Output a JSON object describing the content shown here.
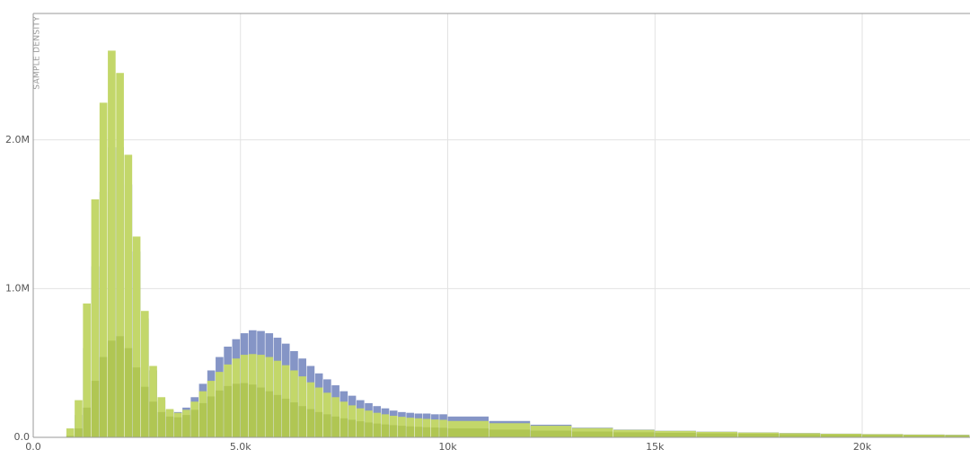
{
  "chart_data": {
    "type": "histogram",
    "y_label": "SAMPLE DENSITY",
    "bins": [
      0,
      200,
      400,
      600,
      800,
      1000,
      1200,
      1400,
      1600,
      1800,
      2000,
      2200,
      2400,
      2600,
      2800,
      3000,
      3200,
      3400,
      3600,
      3800,
      4000,
      4200,
      4400,
      4600,
      4800,
      5000,
      5200,
      5400,
      5600,
      5800,
      6000,
      6200,
      6400,
      6600,
      6800,
      7000,
      7200,
      7400,
      7600,
      7800,
      8000,
      8200,
      8400,
      8600,
      8800,
      9000,
      9200,
      9400,
      9600,
      9800,
      10000,
      11000,
      12000,
      13000,
      14000,
      15000,
      16000,
      17000,
      18000,
      19000,
      20000,
      21000,
      22000,
      22600
    ],
    "series": [
      {
        "color": "#8595c6",
        "opacity": 1,
        "values": [
          0,
          0,
          0,
          0,
          20000,
          150000,
          600000,
          1150000,
          1650000,
          1950000,
          1950000,
          1700000,
          1250000,
          800000,
          450000,
          250000,
          180000,
          170000,
          200000,
          270000,
          360000,
          450000,
          540000,
          610000,
          660000,
          700000,
          720000,
          715000,
          700000,
          670000,
          630000,
          580000,
          530000,
          480000,
          430000,
          390000,
          350000,
          310000,
          280000,
          250000,
          230000,
          210000,
          195000,
          180000,
          170000,
          165000,
          160000,
          160000,
          155000,
          155000,
          140000,
          110000,
          85000,
          65000,
          52000,
          44000,
          38000,
          33000,
          29000,
          25000,
          22000,
          19000,
          17000
        ]
      },
      {
        "color": "#c3d76a",
        "opacity": 1,
        "values": [
          0,
          0,
          0,
          0,
          60000,
          250000,
          900000,
          1600000,
          2250000,
          2600000,
          2450000,
          1900000,
          1350000,
          850000,
          480000,
          270000,
          190000,
          165000,
          185000,
          240000,
          310000,
          380000,
          440000,
          490000,
          530000,
          555000,
          560000,
          555000,
          540000,
          515000,
          485000,
          450000,
          410000,
          370000,
          335000,
          300000,
          270000,
          240000,
          215000,
          195000,
          180000,
          165000,
          155000,
          145000,
          138000,
          132000,
          128000,
          124000,
          120000,
          118000,
          110000,
          95000,
          78000,
          62000,
          50000,
          43000,
          37000,
          32000,
          28000,
          24000,
          21000,
          18000,
          16000
        ]
      },
      {
        "color": "#a3bb45",
        "opacity": 0.6,
        "values": [
          0,
          0,
          0,
          0,
          10000,
          60000,
          200000,
          380000,
          540000,
          650000,
          680000,
          600000,
          470000,
          340000,
          240000,
          170000,
          140000,
          135000,
          150000,
          185000,
          230000,
          275000,
          315000,
          345000,
          360000,
          365000,
          355000,
          335000,
          310000,
          285000,
          260000,
          235000,
          210000,
          190000,
          170000,
          155000,
          140000,
          128000,
          118000,
          108000,
          100000,
          93000,
          87000,
          82000,
          78000,
          74000,
          71000,
          68000,
          66000,
          64000,
          60000,
          52000,
          45000,
          39000,
          34000,
          30000,
          27000,
          24000,
          21000,
          19000,
          17000,
          15000,
          14000
        ]
      }
    ],
    "xlim": [
      0,
      22600
    ],
    "xticks": [
      {
        "value": 0,
        "label": "0.0"
      },
      {
        "value": 5000,
        "label": "5.0k"
      },
      {
        "value": 10000,
        "label": "10k"
      },
      {
        "value": 15000,
        "label": "15k"
      },
      {
        "value": 20000,
        "label": "20k"
      }
    ],
    "ylim": [
      0,
      2850000
    ],
    "yticks": [
      {
        "value": 0,
        "label": "0.0"
      },
      {
        "value": 1000000,
        "label": "1.0M"
      },
      {
        "value": 2000000,
        "label": "2.0M"
      }
    ],
    "grid": true
  }
}
